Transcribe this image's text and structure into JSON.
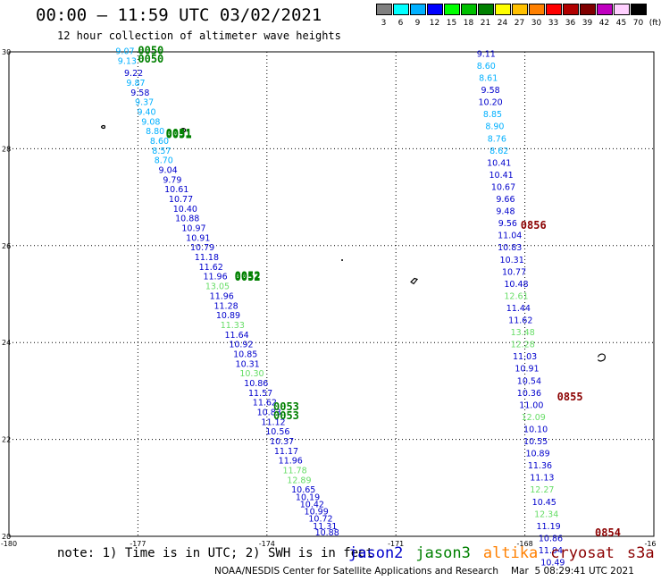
{
  "header": {
    "title": "00:00 – 11:59 UTC 03/02/2021",
    "subtitle": "12 hour collection of altimeter wave heights"
  },
  "legend": {
    "colors": [
      "#808080",
      "#00ffff",
      "#00b0ff",
      "#0000ff",
      "#00ff00",
      "#00c000",
      "#008000",
      "#ffff00",
      "#ffc000",
      "#ff8000",
      "#ff0000",
      "#b00000",
      "#800000",
      "#c000c0",
      "#ffd0ff",
      "#000000"
    ],
    "labels": [
      "3",
      "6",
      "9",
      "12",
      "15",
      "18",
      "21",
      "24",
      "27",
      "30",
      "33",
      "36",
      "39",
      "42",
      "45",
      "70",
      "(ft)"
    ]
  },
  "map": {
    "lon_range": [
      -180,
      -165
    ],
    "lat_range": [
      20,
      30
    ],
    "x_ticks": [
      "-180",
      "-177",
      "-174",
      "-171",
      "-168",
      "-16"
    ],
    "y_ticks": [
      "20",
      "22",
      "24",
      "26",
      "28",
      "30"
    ],
    "sat_colors": {
      "jason2": "#0000cc",
      "jason3": "#008000",
      "altika": "#ff8000",
      "cryosat": "#8b0000",
      "s3a": "#8b0000"
    }
  },
  "chart_data": {
    "type": "scatter",
    "tracks": [
      {
        "name": "jason3_0050",
        "time_labels": [
          {
            "text": "0050"
          },
          {
            "text": "0050"
          }
        ],
        "time_colors": [
          "#008000",
          "#008000"
        ],
        "points": [
          {
            "lon": -177.3,
            "lat": 29.95,
            "v": "9.07",
            "c": "#00b0ff"
          },
          {
            "lon": -177.25,
            "lat": 29.75,
            "v": "9.13",
            "c": "#00b0ff"
          },
          {
            "lon": -177.1,
            "lat": 29.5,
            "v": "9.22",
            "c": "#0000cc"
          },
          {
            "lon": -177.05,
            "lat": 29.3,
            "v": "9.87",
            "c": "#00b0ff"
          },
          {
            "lon": -176.95,
            "lat": 29.1,
            "v": "9.58",
            "c": "#0000cc"
          },
          {
            "lon": -176.85,
            "lat": 28.9,
            "v": "9.37",
            "c": "#00b0ff"
          },
          {
            "lon": -176.8,
            "lat": 28.7,
            "v": "9.40",
            "c": "#00b0ff"
          },
          {
            "lon": -176.7,
            "lat": 28.5,
            "v": "9.08",
            "c": "#00b0ff"
          },
          {
            "lon": -176.6,
            "lat": 28.3,
            "v": "8.80",
            "c": "#00b0ff"
          },
          {
            "lon": -176.5,
            "lat": 28.1,
            "v": "8.60",
            "c": "#00b0ff"
          },
          {
            "lon": -176.45,
            "lat": 27.9,
            "v": "8.57",
            "c": "#00b0ff"
          },
          {
            "lon": -176.4,
            "lat": 27.7,
            "v": "8.70",
            "c": "#00b0ff"
          }
        ]
      },
      {
        "name": "jason3_0051",
        "time_labels": [
          {
            "text": "0051"
          },
          {
            "text": "0051"
          }
        ],
        "time_colors": [
          "#008000",
          "#008000"
        ],
        "points": [
          {
            "lon": -176.3,
            "lat": 27.5,
            "v": "9.04",
            "c": "#0000cc"
          },
          {
            "lon": -176.2,
            "lat": 27.3,
            "v": "9.79",
            "c": "#0000cc"
          },
          {
            "lon": -176.1,
            "lat": 27.1,
            "v": "10.61",
            "c": "#0000cc"
          },
          {
            "lon": -176.0,
            "lat": 26.9,
            "v": "10.77",
            "c": "#0000cc"
          },
          {
            "lon": -175.9,
            "lat": 26.7,
            "v": "10.40",
            "c": "#0000cc"
          },
          {
            "lon": -175.85,
            "lat": 26.5,
            "v": "10.88",
            "c": "#0000cc"
          },
          {
            "lon": -175.7,
            "lat": 26.3,
            "v": "10.97",
            "c": "#0000cc"
          },
          {
            "lon": -175.6,
            "lat": 26.1,
            "v": "10.91",
            "c": "#0000cc"
          },
          {
            "lon": -175.5,
            "lat": 25.9,
            "v": "10.79",
            "c": "#0000cc"
          },
          {
            "lon": -175.4,
            "lat": 25.7,
            "v": "11.18",
            "c": "#0000cc"
          },
          {
            "lon": -175.3,
            "lat": 25.5,
            "v": "11.62",
            "c": "#0000cc"
          },
          {
            "lon": -175.2,
            "lat": 25.3,
            "v": "11.96",
            "c": "#0000cc"
          }
        ]
      },
      {
        "name": "jason3_0052",
        "time_labels": [
          {
            "text": "0052"
          },
          {
            "text": "0052"
          }
        ],
        "time_colors": [
          "#008000",
          "#008000"
        ],
        "points": [
          {
            "lon": -175.15,
            "lat": 25.1,
            "v": "13.05",
            "c": "#66dd66"
          },
          {
            "lon": -175.05,
            "lat": 24.9,
            "v": "11.96",
            "c": "#0000cc"
          },
          {
            "lon": -174.95,
            "lat": 24.7,
            "v": "11.28",
            "c": "#0000cc"
          },
          {
            "lon": -174.9,
            "lat": 24.5,
            "v": "10.89",
            "c": "#0000cc"
          },
          {
            "lon": -174.8,
            "lat": 24.3,
            "v": "11.33",
            "c": "#66dd66"
          },
          {
            "lon": -174.7,
            "lat": 24.1,
            "v": "11.64",
            "c": "#0000cc"
          },
          {
            "lon": -174.6,
            "lat": 23.9,
            "v": "10.92",
            "c": "#0000cc"
          },
          {
            "lon": -174.5,
            "lat": 23.7,
            "v": "10.85",
            "c": "#0000cc"
          },
          {
            "lon": -174.45,
            "lat": 23.5,
            "v": "10.31",
            "c": "#0000cc"
          },
          {
            "lon": -174.35,
            "lat": 23.3,
            "v": "10.30",
            "c": "#66dd66"
          },
          {
            "lon": -174.25,
            "lat": 23.1,
            "v": "10.86",
            "c": "#0000cc"
          },
          {
            "lon": -174.15,
            "lat": 22.9,
            "v": "11.57",
            "c": "#0000cc"
          }
        ]
      },
      {
        "name": "jason3_0053",
        "time_labels": [
          {
            "text": "0053"
          },
          {
            "text": "0053"
          }
        ],
        "time_colors": [
          "#008000",
          "#008000"
        ],
        "points": [
          {
            "lon": -174.05,
            "lat": 22.7,
            "v": "11.62",
            "c": "#0000cc"
          },
          {
            "lon": -173.95,
            "lat": 22.5,
            "v": "10.83",
            "c": "#0000cc"
          },
          {
            "lon": -173.85,
            "lat": 22.3,
            "v": "11.12",
            "c": "#0000cc"
          },
          {
            "lon": -173.75,
            "lat": 22.1,
            "v": "10.56",
            "c": "#0000cc"
          },
          {
            "lon": -173.65,
            "lat": 21.9,
            "v": "10.37",
            "c": "#0000cc"
          },
          {
            "lon": -173.55,
            "lat": 21.7,
            "v": "11.17",
            "c": "#0000cc"
          },
          {
            "lon": -173.45,
            "lat": 21.5,
            "v": "11.96",
            "c": "#0000cc"
          },
          {
            "lon": -173.35,
            "lat": 21.3,
            "v": "11.78",
            "c": "#66dd66"
          },
          {
            "lon": -173.25,
            "lat": 21.1,
            "v": "12.89",
            "c": "#66dd66"
          },
          {
            "lon": -173.15,
            "lat": 20.9,
            "v": "10.65",
            "c": "#0000cc"
          },
          {
            "lon": -173.05,
            "lat": 20.75,
            "v": "10.19",
            "c": "#0000cc"
          },
          {
            "lon": -172.95,
            "lat": 20.6,
            "v": "10.42",
            "c": "#0000cc"
          },
          {
            "lon": -172.85,
            "lat": 20.45,
            "v": "10.99",
            "c": "#0000cc"
          },
          {
            "lon": -172.75,
            "lat": 20.3,
            "v": "10.72",
            "c": "#0000cc"
          },
          {
            "lon": -172.65,
            "lat": 20.15,
            "v": "11.31",
            "c": "#0000cc"
          },
          {
            "lon": -172.6,
            "lat": 20.02,
            "v": "10.88",
            "c": "#0000cc"
          }
        ]
      },
      {
        "name": "cryosat_right",
        "time_labels": [
          {
            "text": "0856"
          },
          {
            "text": "0855"
          },
          {
            "text": "0854"
          }
        ],
        "time_colors": [
          "#8b0000",
          "#8b0000",
          "#8b0000"
        ],
        "points": [
          {
            "lon": -168.9,
            "lat": 29.9,
            "v": "9.11",
            "c": "#0000cc"
          },
          {
            "lon": -168.9,
            "lat": 29.65,
            "v": "8.60",
            "c": "#00b0ff"
          },
          {
            "lon": -168.85,
            "lat": 29.4,
            "v": "8.61",
            "c": "#00b0ff"
          },
          {
            "lon": -168.8,
            "lat": 29.15,
            "v": "9.58",
            "c": "#0000cc"
          },
          {
            "lon": -168.8,
            "lat": 28.9,
            "v": "10.20",
            "c": "#0000cc"
          },
          {
            "lon": -168.75,
            "lat": 28.65,
            "v": "8.85",
            "c": "#00b0ff"
          },
          {
            "lon": -168.7,
            "lat": 28.4,
            "v": "8.90",
            "c": "#00b0ff"
          },
          {
            "lon": -168.65,
            "lat": 28.15,
            "v": "8.76",
            "c": "#00b0ff"
          },
          {
            "lon": -168.6,
            "lat": 27.9,
            "v": "8.62",
            "c": "#00b0ff"
          },
          {
            "lon": -168.6,
            "lat": 27.65,
            "v": "10.41",
            "c": "#0000cc"
          },
          {
            "lon": -168.55,
            "lat": 27.4,
            "v": "10.41",
            "c": "#0000cc"
          },
          {
            "lon": -168.5,
            "lat": 27.15,
            "v": "10.67",
            "c": "#0000cc"
          },
          {
            "lon": -168.45,
            "lat": 26.9,
            "v": "9.66",
            "c": "#0000cc"
          },
          {
            "lon": -168.45,
            "lat": 26.65,
            "v": "9.48",
            "c": "#0000cc"
          },
          {
            "lon": -168.4,
            "lat": 26.4,
            "v": "9.56",
            "c": "#0000cc"
          },
          {
            "lon": -168.35,
            "lat": 26.15,
            "v": "11.04",
            "c": "#0000cc"
          },
          {
            "lon": -168.35,
            "lat": 25.9,
            "v": "10.83",
            "c": "#0000cc"
          },
          {
            "lon": -168.3,
            "lat": 25.65,
            "v": "10.31",
            "c": "#0000cc"
          },
          {
            "lon": -168.25,
            "lat": 25.4,
            "v": "10.77",
            "c": "#0000cc"
          },
          {
            "lon": -168.2,
            "lat": 25.15,
            "v": "10.48",
            "c": "#0000cc"
          },
          {
            "lon": -168.2,
            "lat": 24.9,
            "v": "12.61",
            "c": "#66dd66"
          },
          {
            "lon": -168.15,
            "lat": 24.65,
            "v": "11.44",
            "c": "#0000cc"
          },
          {
            "lon": -168.1,
            "lat": 24.4,
            "v": "11.62",
            "c": "#0000cc"
          },
          {
            "lon": -168.05,
            "lat": 24.15,
            "v": "13.48",
            "c": "#66dd66"
          },
          {
            "lon": -168.05,
            "lat": 23.9,
            "v": "12.28",
            "c": "#66dd66"
          },
          {
            "lon": -168.0,
            "lat": 23.65,
            "v": "11.03",
            "c": "#0000cc"
          },
          {
            "lon": -167.95,
            "lat": 23.4,
            "v": "10.91",
            "c": "#0000cc"
          },
          {
            "lon": -167.9,
            "lat": 23.15,
            "v": "10.54",
            "c": "#0000cc"
          },
          {
            "lon": -167.9,
            "lat": 22.9,
            "v": "10.36",
            "c": "#0000cc"
          },
          {
            "lon": -167.85,
            "lat": 22.65,
            "v": "11.00",
            "c": "#0000cc"
          },
          {
            "lon": -167.8,
            "lat": 22.4,
            "v": "12.09",
            "c": "#66dd66"
          },
          {
            "lon": -167.75,
            "lat": 22.15,
            "v": "10.10",
            "c": "#0000cc"
          },
          {
            "lon": -167.75,
            "lat": 21.9,
            "v": "10.55",
            "c": "#0000cc"
          },
          {
            "lon": -167.7,
            "lat": 21.65,
            "v": "10.89",
            "c": "#0000cc"
          },
          {
            "lon": -167.65,
            "lat": 21.4,
            "v": "11.36",
            "c": "#0000cc"
          },
          {
            "lon": -167.6,
            "lat": 21.15,
            "v": "11.13",
            "c": "#0000cc"
          },
          {
            "lon": -167.6,
            "lat": 20.9,
            "v": "12.27",
            "c": "#66dd66"
          },
          {
            "lon": -167.55,
            "lat": 20.65,
            "v": "10.45",
            "c": "#0000cc"
          },
          {
            "lon": -167.5,
            "lat": 20.4,
            "v": "12.34",
            "c": "#66dd66"
          },
          {
            "lon": -167.45,
            "lat": 20.15,
            "v": "11.19",
            "c": "#0000cc"
          },
          {
            "lon": -167.4,
            "lat": 19.9,
            "v": "10.86",
            "c": "#0000cc"
          },
          {
            "lon": -167.4,
            "lat": 19.65,
            "v": "11.94",
            "c": "#0000cc"
          },
          {
            "lon": -167.35,
            "lat": 19.4,
            "v": "10.49",
            "c": "#0000cc"
          }
        ]
      }
    ]
  },
  "footer": {
    "note": "note: 1) Time is in UTC; 2) SWH is in feet",
    "satellites": [
      {
        "label": "jason2",
        "color": "#0000cc"
      },
      {
        "label": "jason3",
        "color": "#008000"
      },
      {
        "label": "altika",
        "color": "#ff8000"
      },
      {
        "label": "cryosat",
        "color": "#8b0000"
      },
      {
        "label": "s3a",
        "color": "#8b0000"
      }
    ],
    "credit": "NOAA/NESDIS Center for Satellite Applications and Research",
    "timestamp": "Mar  5 08:29:41 UTC 2021"
  }
}
